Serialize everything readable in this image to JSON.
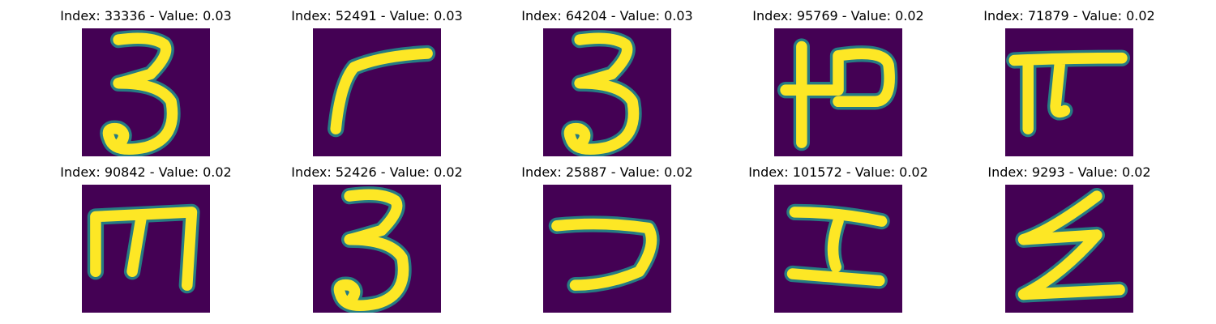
{
  "colors": {
    "background": "#440154",
    "stroke": "#fde725",
    "stroke_edge": "#21918c"
  },
  "panels": [
    {
      "index": "33336",
      "value": "0.03",
      "title": "Index: 33336 - Value: 0.03",
      "glyph": "three"
    },
    {
      "index": "52491",
      "value": "0.03",
      "title": "Index: 52491 - Value: 0.03",
      "glyph": "hook-left"
    },
    {
      "index": "64204",
      "value": "0.03",
      "title": "Index: 64204 - Value: 0.03",
      "glyph": "three"
    },
    {
      "index": "95769",
      "value": "0.02",
      "title": "Index: 95769 - Value: 0.02",
      "glyph": "vertical-loop"
    },
    {
      "index": "71879",
      "value": "0.02",
      "title": "Index: 71879 - Value: 0.02",
      "glyph": "pi"
    },
    {
      "index": "90842",
      "value": "0.02",
      "title": "Index: 90842 - Value: 0.02",
      "glyph": "comb"
    },
    {
      "index": "52426",
      "value": "0.02",
      "title": "Index: 52426 - Value: 0.02",
      "glyph": "three"
    },
    {
      "index": "25887",
      "value": "0.02",
      "title": "Index: 25887 - Value: 0.02",
      "glyph": "hook-right"
    },
    {
      "index": "101572",
      "value": "0.02",
      "title": "Index: 101572 - Value: 0.02",
      "glyph": "i-beam"
    },
    {
      "index": "9293",
      "value": "0.02",
      "title": "Index: 9293 - Value: 0.02",
      "glyph": "zigzag"
    }
  ]
}
